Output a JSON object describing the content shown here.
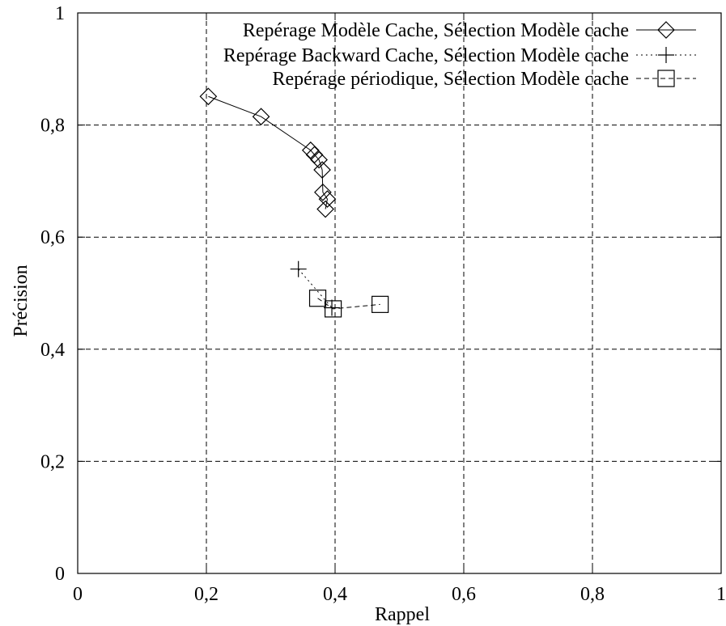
{
  "chart_data": {
    "type": "scatter",
    "title": "",
    "xlabel": "Rappel",
    "ylabel": "Précision",
    "xlim": [
      0,
      1
    ],
    "ylim": [
      0,
      1
    ],
    "grid": true,
    "legend_position": "top-right",
    "x_ticks": [
      "0",
      "0,2",
      "0,4",
      "0,6",
      "0,8",
      "1"
    ],
    "y_ticks": [
      "0",
      "0,2",
      "0,4",
      "0,6",
      "0,8",
      "1"
    ],
    "series": [
      {
        "name": "Repérage Modèle Cache, Sélection Modèle cache",
        "line": "solid",
        "marker": "diamond",
        "points": [
          [
            0.203,
            0.851
          ],
          [
            0.285,
            0.815
          ],
          [
            0.362,
            0.755
          ],
          [
            0.368,
            0.747
          ],
          [
            0.375,
            0.738
          ],
          [
            0.38,
            0.72
          ],
          [
            0.381,
            0.68
          ],
          [
            0.388,
            0.668
          ],
          [
            0.385,
            0.65
          ]
        ]
      },
      {
        "name": "Repérage Backward Cache, Sélection Modèle cache",
        "line": "dotted",
        "marker": "plus",
        "points": [
          [
            0.343,
            0.543
          ],
          [
            0.395,
            0.474
          ]
        ]
      },
      {
        "name": "Repérage périodique, Sélection Modèle cache",
        "line": "dashed",
        "marker": "square",
        "points": [
          [
            0.373,
            0.491
          ],
          [
            0.397,
            0.472
          ],
          [
            0.47,
            0.48
          ]
        ]
      }
    ]
  }
}
